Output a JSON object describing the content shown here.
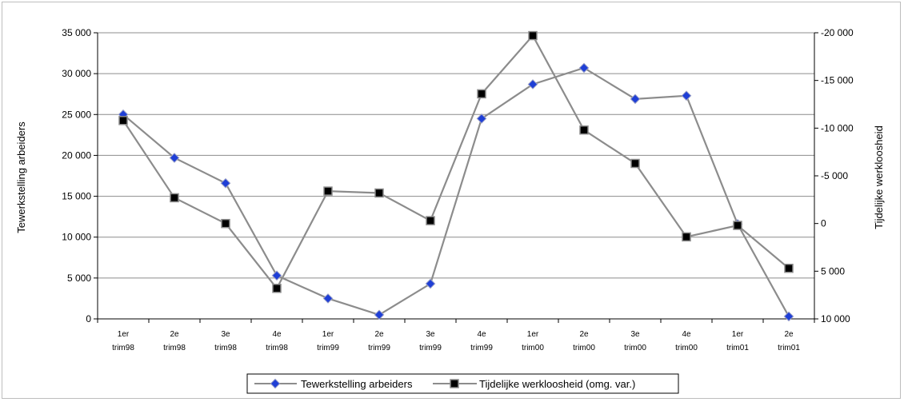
{
  "chart_data": {
    "type": "line",
    "categories": [
      [
        "1er",
        "trim98"
      ],
      [
        "2e",
        "trim98"
      ],
      [
        "3e",
        "trim98"
      ],
      [
        "4e",
        "trim98"
      ],
      [
        "1er",
        "trim99"
      ],
      [
        "2e",
        "trim99"
      ],
      [
        "3e",
        "trim99"
      ],
      [
        "4e",
        "trim99"
      ],
      [
        "1er",
        "trim00"
      ],
      [
        "2e",
        "trim00"
      ],
      [
        "3e",
        "trim00"
      ],
      [
        "4e",
        "trim00"
      ],
      [
        "1er",
        "trim01"
      ],
      [
        "2e",
        "trim01"
      ]
    ],
    "ylabel": "Tewerkstelling arbeiders",
    "y2label": "Tijdelijke werkloosheid",
    "ylim": [
      0,
      35000
    ],
    "y2lim": [
      10000,
      -20000
    ],
    "y_ticks": [
      "0",
      "5 000",
      "10 000",
      "15 000",
      "20 000",
      "25 000",
      "30 000",
      "35 000"
    ],
    "y2_ticks": [
      "10 000",
      "5 000",
      "0",
      "-5 000",
      "-10 000",
      "-15 000",
      "-20 000"
    ],
    "y_tick_values": [
      0,
      5000,
      10000,
      15000,
      20000,
      25000,
      30000,
      35000
    ],
    "y2_tick_values": [
      10000,
      5000,
      0,
      -5000,
      -10000,
      -15000,
      -20000
    ],
    "grid": true,
    "legend_position": "bottom",
    "series": [
      {
        "name": "Tewerkstelling arbeiders",
        "axis": "left",
        "marker": "diamond",
        "marker_color": "#1f3fd6",
        "line_color": "#8c8c8c",
        "values": [
          25000,
          19700,
          16600,
          5300,
          2500,
          500,
          4300,
          24500,
          28700,
          30700,
          26900,
          27300,
          11600,
          300
        ]
      },
      {
        "name": "Tijdelijke werkloosheid (omg. var.)",
        "axis": "right",
        "marker": "square",
        "marker_color": "#000000",
        "line_color": "#8c8c8c",
        "values": [
          -10800,
          -2700,
          0,
          6800,
          -3400,
          -3200,
          -300,
          -13600,
          -19700,
          -9800,
          -6300,
          1400,
          200,
          4700
        ]
      }
    ]
  }
}
